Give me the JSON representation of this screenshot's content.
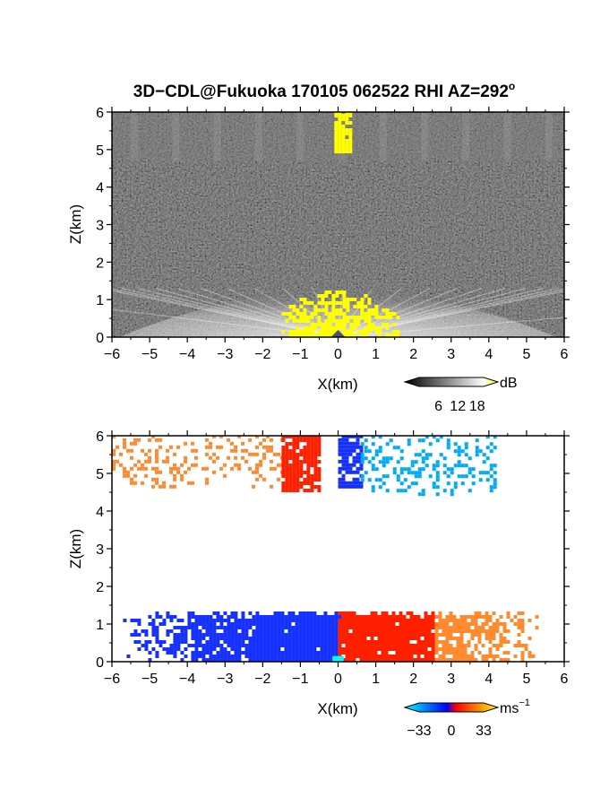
{
  "chart_data": [
    {
      "type": "heatmap",
      "title": "3D−CDL@Fukuoka 170105 062522 RHI AZ=292",
      "title_superscript": "o",
      "xlabel": "X(km)",
      "ylabel": "Z(km)",
      "xlim": [
        -6,
        6
      ],
      "ylim": [
        0,
        6
      ],
      "x_ticks": [
        "−6",
        "−5",
        "−4",
        "−3",
        "−2",
        "−1",
        "0",
        "1",
        "2",
        "3",
        "4",
        "5",
        "6"
      ],
      "y_ticks": [
        "0",
        "1",
        "2",
        "3",
        "4",
        "5",
        "6"
      ],
      "colorbar": {
        "unit": "dB",
        "ticks": [
          "6",
          "12",
          "18"
        ],
        "range": [
          0,
          20
        ],
        "colors": [
          "#000000",
          "#ffffff",
          "#ffff00"
        ]
      },
      "regions": [
        {
          "name": "clutter fan near ground",
          "x": [
            -5.8,
            5.8
          ],
          "z": [
            0.0,
            1.3
          ],
          "level_db": 12
        },
        {
          "name": "strong echo core",
          "x": [
            -1.5,
            1.6
          ],
          "z": [
            0.0,
            1.2
          ],
          "level_db": 19
        },
        {
          "name": "upper aerosol layer",
          "x": [
            -6.0,
            6.0
          ],
          "z": [
            4.7,
            6.0
          ],
          "level_db": 8
        },
        {
          "name": "strong echo aloft",
          "x": [
            -0.1,
            0.3
          ],
          "z": [
            4.9,
            6.0
          ],
          "level_db": 19
        }
      ]
    },
    {
      "type": "heatmap",
      "title": "",
      "xlabel": "X(km)",
      "ylabel": "Z(km)",
      "xlim": [
        -6,
        6
      ],
      "ylim": [
        0,
        6
      ],
      "x_ticks": [
        "−6",
        "−5",
        "−4",
        "−3",
        "−2",
        "−1",
        "0",
        "1",
        "2",
        "3",
        "4",
        "5",
        "6"
      ],
      "y_ticks": [
        "0",
        "1",
        "2",
        "3",
        "4",
        "5",
        "6"
      ],
      "colorbar": {
        "unit": "ms",
        "unit_superscript": "−1",
        "ticks": [
          "−33",
          "0",
          "33"
        ],
        "range": [
          -33,
          33
        ],
        "colors": [
          "#00ffff",
          "#0000ff",
          "#ff0000",
          "#ffff00"
        ]
      },
      "regions": [
        {
          "name": "low-level approaching flow",
          "x": [
            -5.8,
            0.0
          ],
          "z": [
            0.0,
            1.3
          ],
          "velocity_ms": -12
        },
        {
          "name": "low-level receding flow",
          "x": [
            0.0,
            5.3
          ],
          "z": [
            0.0,
            1.3
          ],
          "velocity_ms": 12
        },
        {
          "name": "upper layer west",
          "x": [
            -6.0,
            -1.5
          ],
          "z": [
            4.6,
            6.0
          ],
          "velocity_ms": 20
        },
        {
          "name": "upper core west of radar",
          "x": [
            -1.5,
            -0.5
          ],
          "z": [
            4.5,
            6.0
          ],
          "velocity_ms": 12
        },
        {
          "name": "upper core east of radar",
          "x": [
            0.0,
            0.6
          ],
          "z": [
            4.6,
            6.0
          ],
          "velocity_ms": -12
        },
        {
          "name": "upper layer east",
          "x": [
            0.6,
            4.2
          ],
          "z": [
            4.4,
            6.0
          ],
          "velocity_ms": -18
        }
      ]
    }
  ]
}
